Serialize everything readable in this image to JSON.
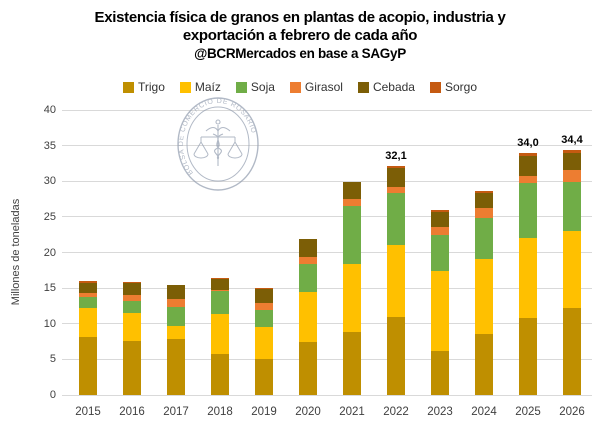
{
  "title": {
    "line1": "Existencia física de granos en plantas de acopio, industria y",
    "line2": "exportación a febrero de cada año",
    "line3": "@BCRMercados en base a SAGyP"
  },
  "watermark": {
    "text": "BOLSA DE COMERCIO DE ROSARIO"
  },
  "colors": {
    "grid": "#d9d9d9",
    "axis_text": "#404040",
    "watermark": "#98a2b3"
  },
  "chart_data": {
    "type": "bar",
    "stacked": true,
    "title": "Existencia física de granos en plantas de acopio, industria y exportación a febrero de cada año",
    "subtitle": "@BCRMercados en base a SAGyP",
    "ylabel": "Millones de toneladas",
    "xlabel": "",
    "ylim": [
      0,
      40
    ],
    "yticks": [
      0,
      5,
      10,
      15,
      20,
      25,
      30,
      35,
      40
    ],
    "grid": true,
    "legend_position": "top",
    "categories": [
      "2015",
      "2016",
      "2017",
      "2018",
      "2019",
      "2020",
      "2021",
      "2022",
      "2023",
      "2024",
      "2025",
      "2026"
    ],
    "series": [
      {
        "name": "Trigo",
        "color": "#bf8f00",
        "values": [
          8.2,
          7.6,
          7.8,
          5.8,
          5.0,
          7.4,
          8.8,
          11.0,
          6.2,
          8.6,
          10.8,
          12.2
        ]
      },
      {
        "name": "Maíz",
        "color": "#ffc000",
        "values": [
          4.0,
          3.9,
          1.9,
          5.6,
          4.5,
          7.0,
          9.6,
          10.0,
          11.2,
          10.5,
          11.2,
          10.8
        ]
      },
      {
        "name": "Soja",
        "color": "#70ad47",
        "values": [
          1.5,
          1.7,
          2.6,
          3.2,
          2.4,
          4.0,
          8.1,
          7.4,
          5.0,
          5.7,
          7.8,
          6.9
        ]
      },
      {
        "name": "Girasol",
        "color": "#ed7d31",
        "values": [
          0.6,
          0.9,
          1.2,
          0.1,
          1.0,
          1.0,
          1.0,
          0.8,
          1.2,
          1.5,
          1.0,
          1.7
        ]
      },
      {
        "name": "Cebada",
        "color": "#7c5e06",
        "values": [
          1.4,
          1.7,
          1.9,
          1.6,
          2.0,
          2.5,
          2.4,
          2.6,
          2.1,
          2.1,
          2.8,
          2.4
        ]
      },
      {
        "name": "Sorgo",
        "color": "#c55a11",
        "values": [
          0.3,
          0.1,
          0.0,
          0.1,
          0.1,
          0.0,
          0.0,
          0.3,
          0.3,
          0.2,
          0.4,
          0.4
        ]
      }
    ],
    "annotations": [
      {
        "category": "2022",
        "text": "32,1"
      },
      {
        "category": "2025",
        "text": "34,0"
      },
      {
        "category": "2026",
        "text": "34,4"
      }
    ]
  }
}
